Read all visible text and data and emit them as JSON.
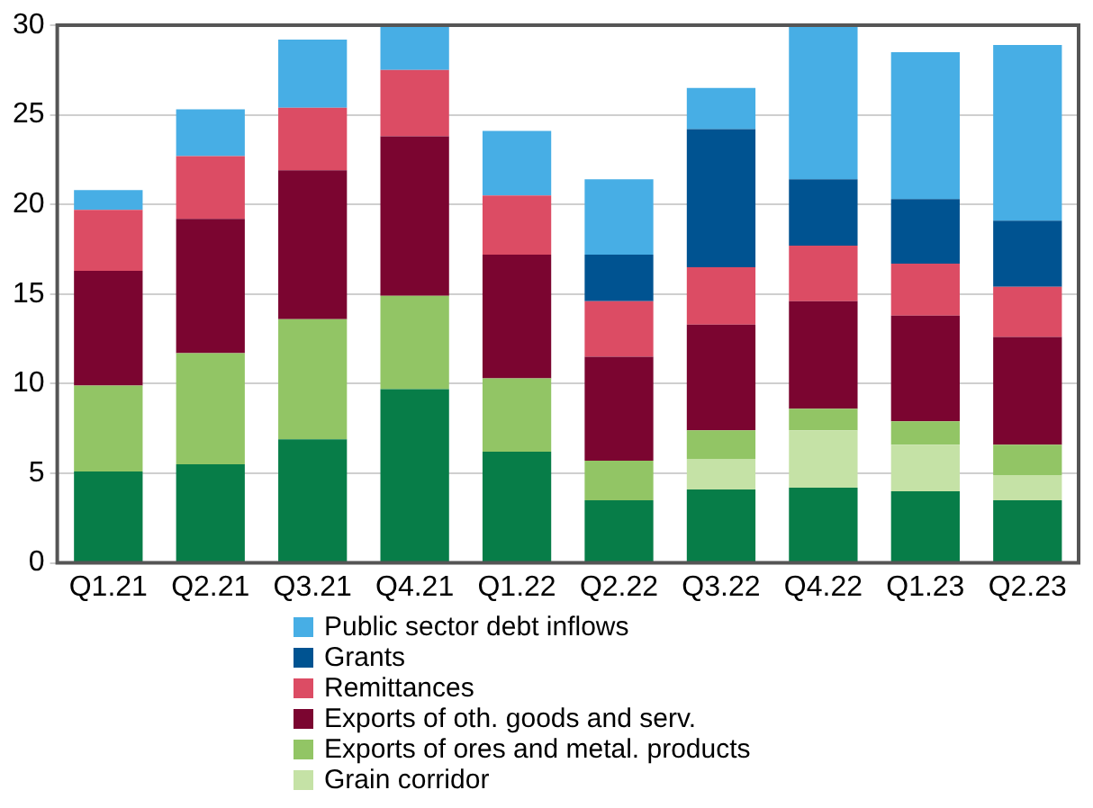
{
  "chart_data": {
    "type": "bar",
    "stacked": true,
    "categories": [
      "Q1.21",
      "Q2.21",
      "Q3.21",
      "Q4.21",
      "Q1.22",
      "Q2.22",
      "Q3.22",
      "Q4.22",
      "Q1.23",
      "Q2.23"
    ],
    "series": [
      {
        "color": "#077d48",
        "values": [
          5.1,
          5.5,
          6.9,
          9.7,
          6.2,
          3.5,
          4.1,
          4.2,
          4.0,
          3.5
        ]
      },
      {
        "name": "Grain corridor",
        "color": "#c5e2a6",
        "values": [
          null,
          null,
          null,
          null,
          null,
          null,
          1.7,
          3.2,
          2.6,
          1.4
        ]
      },
      {
        "name": "Exports of ores and metal. products",
        "color": "#92c565",
        "values": [
          4.8,
          6.2,
          6.7,
          5.2,
          4.1,
          2.2,
          1.6,
          1.2,
          1.3,
          1.7
        ]
      },
      {
        "name": "Exports of oth. goods and serv.",
        "color": "#7b0530",
        "values": [
          6.4,
          7.5,
          8.3,
          8.9,
          6.9,
          5.8,
          5.9,
          6.0,
          5.9,
          6.0
        ]
      },
      {
        "name": "Remittances",
        "color": "#dc4c64",
        "values": [
          3.4,
          3.5,
          3.5,
          3.7,
          3.3,
          3.1,
          3.2,
          3.1,
          2.9,
          2.8
        ]
      },
      {
        "name": "Grants",
        "color": "#005391",
        "values": [
          null,
          null,
          null,
          null,
          null,
          2.6,
          7.7,
          3.7,
          3.6,
          3.7
        ]
      },
      {
        "name": "Public sector debt inflows",
        "color": "#47aee5",
        "values": [
          1.1,
          2.6,
          3.8,
          2.5,
          3.6,
          4.2,
          2.3,
          8.6,
          8.2,
          9.8
        ]
      }
    ],
    "ylim": [
      0,
      30
    ],
    "yticks": [
      0,
      5,
      10,
      15,
      20,
      25,
      30
    ],
    "grid": "y",
    "legend": "bottom"
  }
}
